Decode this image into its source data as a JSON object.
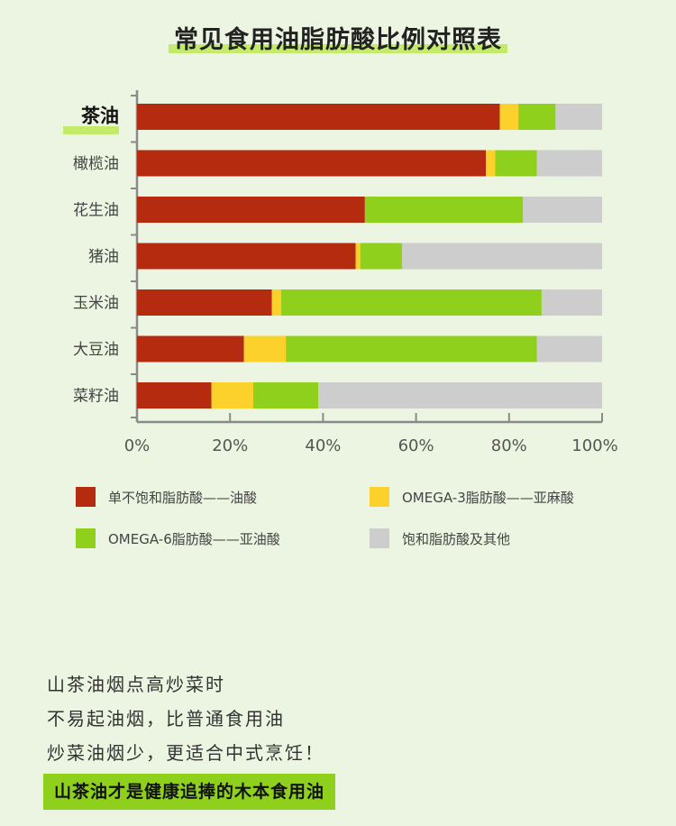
{
  "chart_data": {
    "type": "bar",
    "orientation": "horizontal",
    "stacked": true,
    "title": "常见食用油脂肪酸比例对照表",
    "categories": [
      "茶油",
      "橄榄油",
      "花生油",
      "猪油",
      "玉米油",
      "大豆油",
      "菜籽油"
    ],
    "highlight_category": "茶油",
    "series": [
      {
        "name": "单不饱和脂肪酸——油酸",
        "color": "#b42b0f",
        "values": [
          78,
          75,
          49,
          47,
          29,
          23,
          16
        ]
      },
      {
        "name": "OMEGA-3脂肪酸——亚麻酸",
        "color": "#fcd12c",
        "values": [
          4,
          2,
          0,
          1,
          2,
          9,
          9
        ]
      },
      {
        "name": "OMEGA-6脂肪酸——亚油酸",
        "color": "#8ed01b",
        "values": [
          8,
          9,
          34,
          9,
          56,
          54,
          14
        ]
      },
      {
        "name": "饱和脂肪酸及其他",
        "color": "#cdcdcd",
        "values": [
          10,
          14,
          17,
          43,
          13,
          14,
          61
        ]
      }
    ],
    "xlim": [
      0,
      100
    ],
    "xticks": [
      "0%",
      "20%",
      "40%",
      "60%",
      "80%",
      "100%"
    ],
    "legend_position": "bottom",
    "grid": false
  },
  "caption_lines": [
    "山茶油烟点高炒菜时",
    "不易起油烟，比普通食用油",
    "炒菜油烟少，更适合中式烹饪！"
  ],
  "banner": "山茶油才是健康追捧的木本食用油"
}
